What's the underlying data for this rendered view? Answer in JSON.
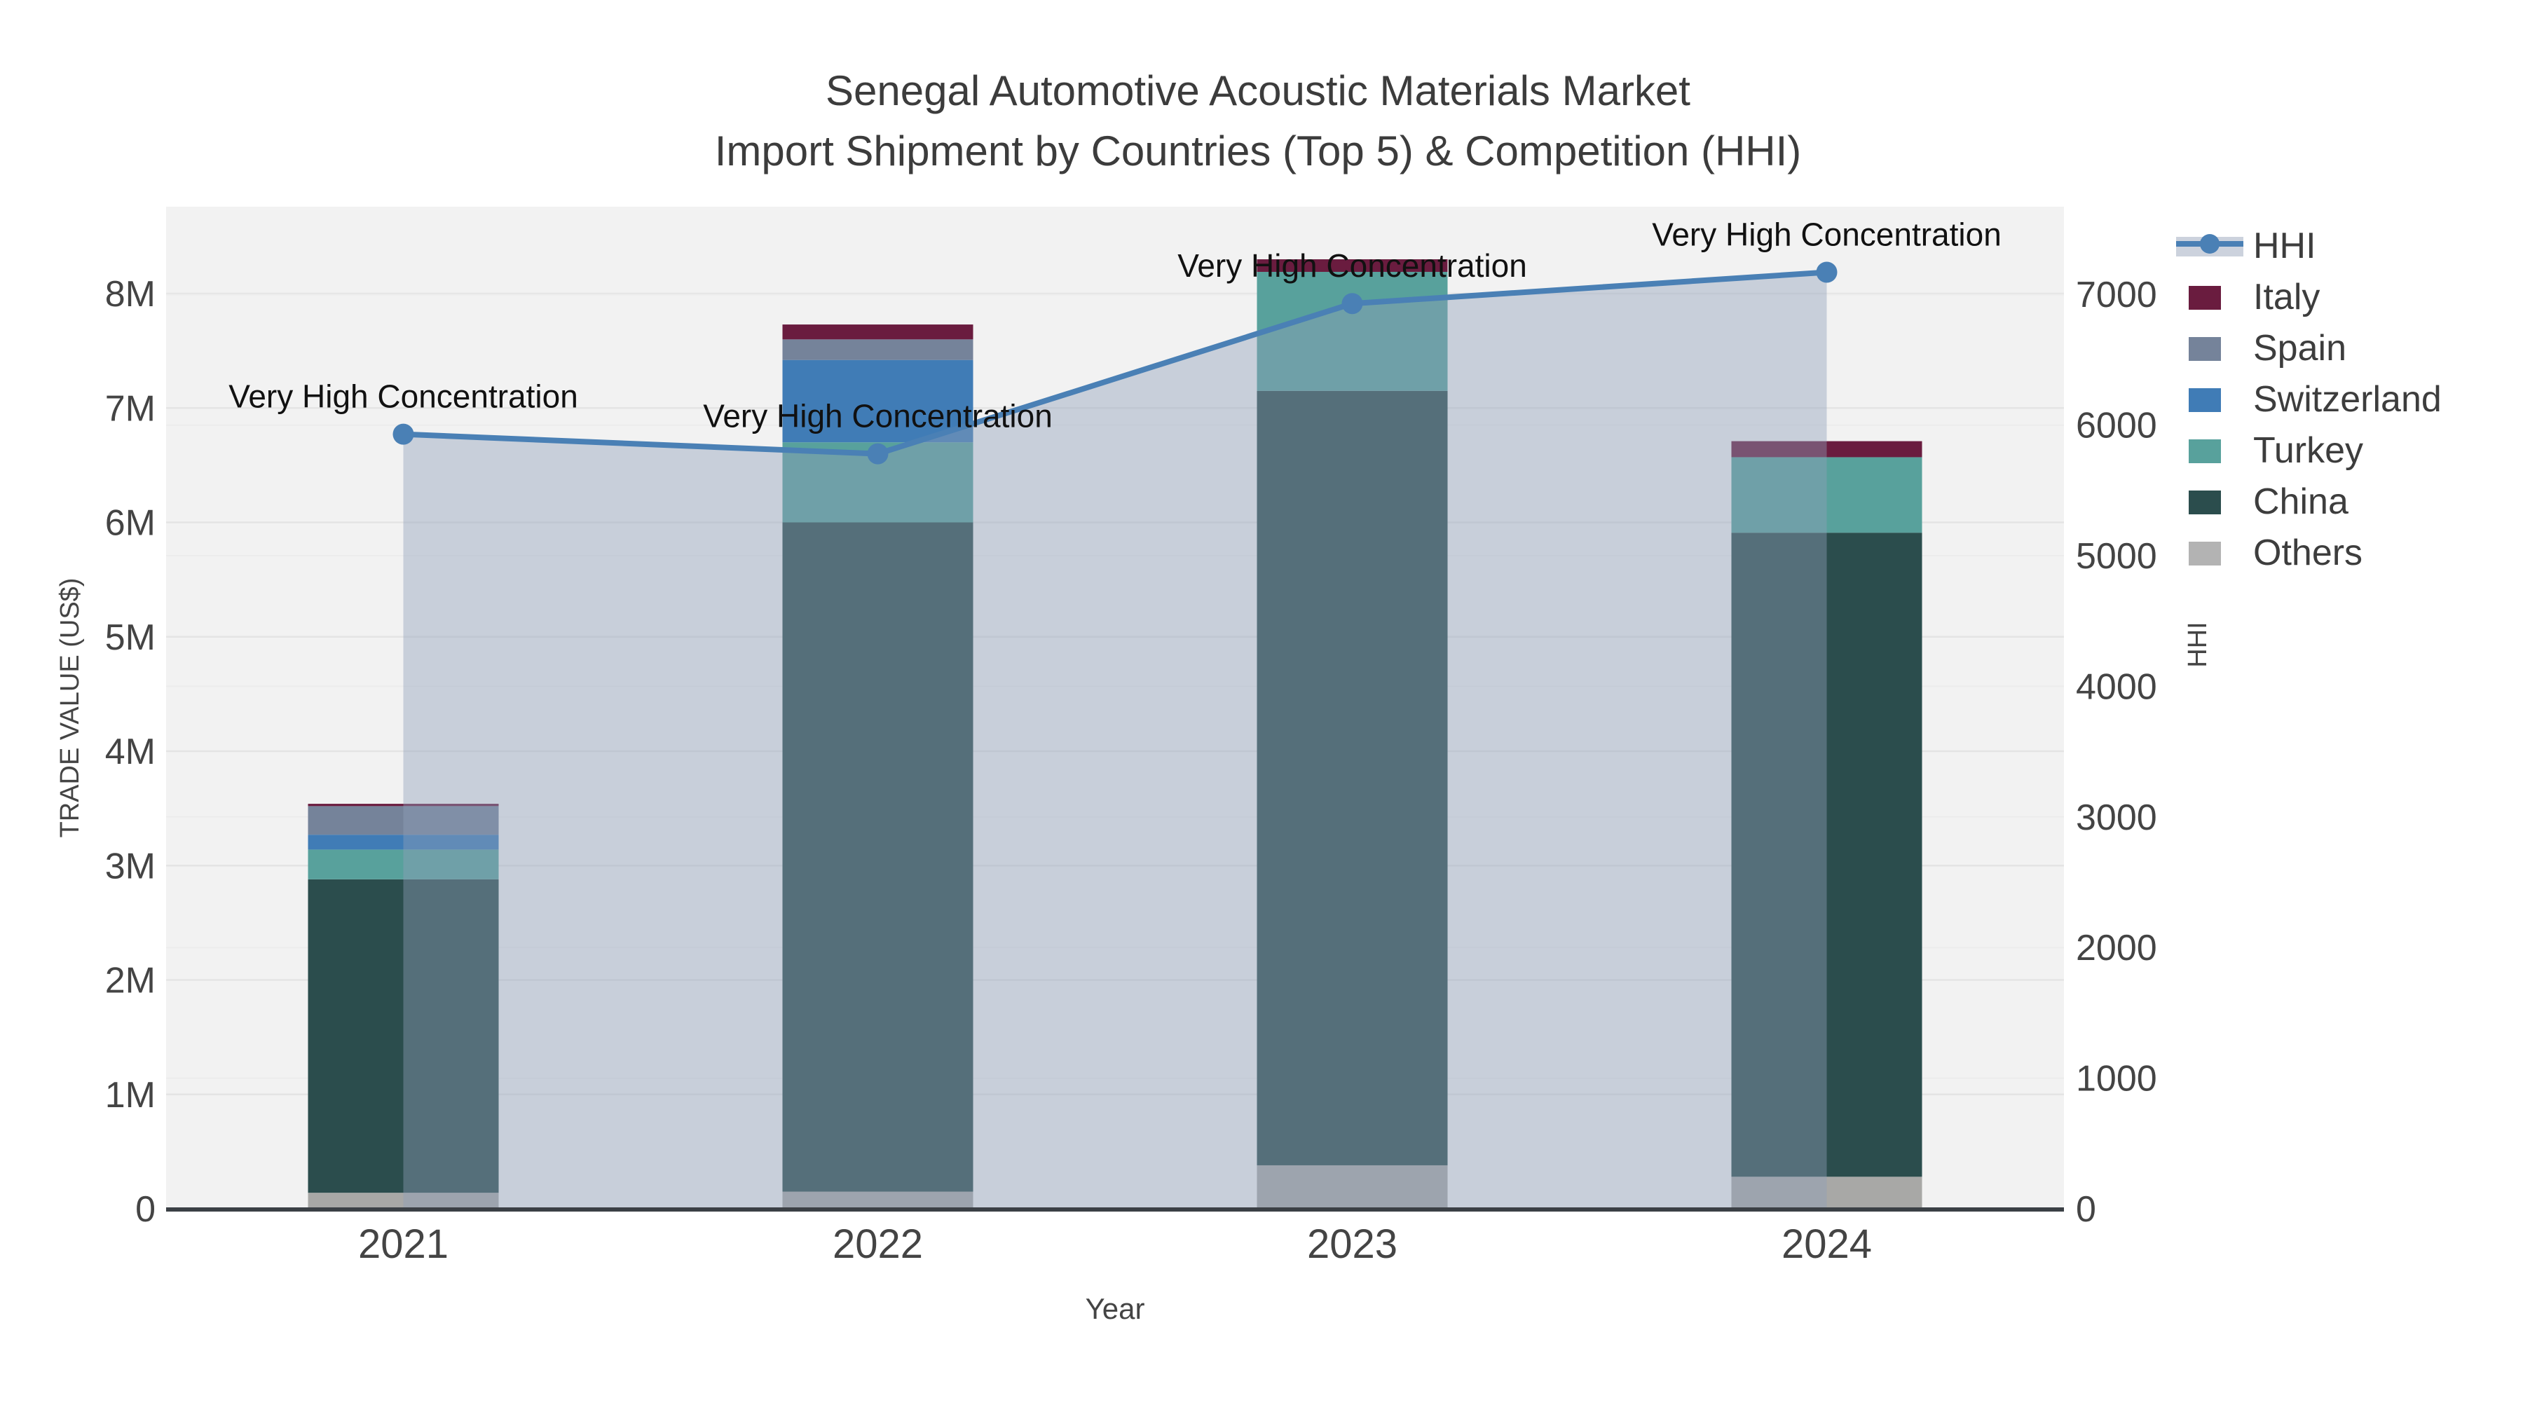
{
  "title": {
    "line1": "Senegal Automotive Acoustic Materials Market",
    "line2": "Import Shipment by Countries (Top 5) & Competition (HHI)"
  },
  "axes": {
    "x": {
      "title": "Year",
      "ticks": [
        "2021",
        "2022",
        "2023",
        "2024"
      ]
    },
    "y_left": {
      "title": "TRADE VALUE (US$)",
      "tick_labels": [
        "0",
        "1M",
        "2M",
        "3M",
        "4M",
        "5M",
        "6M",
        "7M",
        "8M"
      ],
      "tick_values": [
        0,
        1000000,
        2000000,
        3000000,
        4000000,
        5000000,
        6000000,
        7000000,
        8000000
      ],
      "range_max": 8760000
    },
    "y_right": {
      "title": "HHI",
      "tick_labels": [
        "0",
        "1000",
        "2000",
        "3000",
        "4000",
        "5000",
        "6000",
        "7000"
      ],
      "tick_values": [
        0,
        1000,
        2000,
        3000,
        4000,
        5000,
        6000,
        7000
      ],
      "range_max": 7670
    }
  },
  "chart_data": {
    "type": "bar",
    "stacked": true,
    "subtype": "stacked-bar-with-line-overlay",
    "categories": [
      "2021",
      "2022",
      "2023",
      "2024"
    ],
    "value_unit": "US$ trade value",
    "series": [
      {
        "name": "Others",
        "color": "#a8a8a6",
        "legend_color": "#b3b3b3",
        "values": [
          140000,
          150000,
          380000,
          280000
        ]
      },
      {
        "name": "China",
        "color": "#2b4d4d",
        "legend_color": "#2b4d4d",
        "values": [
          2740000,
          5850000,
          6770000,
          5630000
        ]
      },
      {
        "name": "Turkey",
        "color": "#58a19c",
        "legend_color": "#58a19c",
        "values": [
          260000,
          700000,
          1040000,
          660000
        ]
      },
      {
        "name": "Switzerland",
        "color": "#407cb6",
        "legend_color": "#407cb6",
        "values": [
          130000,
          720000,
          0,
          0
        ]
      },
      {
        "name": "Spain",
        "color": "#75839a",
        "legend_color": "#75839a",
        "values": [
          250000,
          180000,
          0,
          0
        ]
      },
      {
        "name": "Italy",
        "color": "#6a1c3f",
        "legend_color": "#6a1c3f",
        "values": [
          20000,
          130000,
          110000,
          140000
        ]
      }
    ],
    "line": {
      "name": "HHI",
      "color": "#4a80b5",
      "area_fill_color": "rgba(142,160,187,0.42)",
      "values": [
        5930,
        5780,
        6930,
        7170
      ]
    },
    "annotations": [
      {
        "category": "2021",
        "text": "Very High Concentration"
      },
      {
        "category": "2022",
        "text": "Very High Concentration"
      },
      {
        "category": "2023",
        "text": "Very High Concentration"
      },
      {
        "category": "2024",
        "text": "Very High Concentration"
      }
    ],
    "legend_position": "right"
  },
  "legend": {
    "items": [
      {
        "label": "HHI",
        "type": "line"
      },
      {
        "label": "Italy",
        "type": "box",
        "color": "#6a1c3f"
      },
      {
        "label": "Spain",
        "type": "box",
        "color": "#75839a"
      },
      {
        "label": "Switzerland",
        "type": "box",
        "color": "#407cb6"
      },
      {
        "label": "Turkey",
        "type": "box",
        "color": "#58a19c"
      },
      {
        "label": "China",
        "type": "box",
        "color": "#2b4d4d"
      },
      {
        "label": "Others",
        "type": "box",
        "color": "#b3b3b3"
      }
    ]
  },
  "colors": {
    "plot_bg": "#f2f2f2",
    "grid_left": "#e4e4e4",
    "grid_right": "#ececec",
    "axis_line": "#3b4045",
    "tick_text": "#444444",
    "title_text": "#3c3c3c",
    "annotation_text": "#111111"
  }
}
